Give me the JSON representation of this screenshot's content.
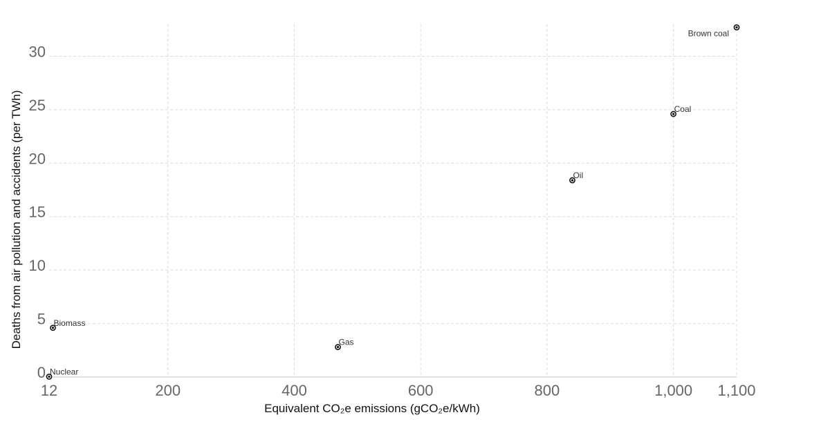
{
  "chart_data": {
    "type": "scatter",
    "xlabel": "Equivalent CO₂e emissions (gCO₂e/kWh)",
    "ylabel": "Deaths from air pollution and accidents (per TWh)",
    "xlim": [
      12,
      1100
    ],
    "ylim": [
      0,
      33
    ],
    "x_ticks": [
      {
        "value": 12,
        "label": "12"
      },
      {
        "value": 200,
        "label": "200"
      },
      {
        "value": 400,
        "label": "400"
      },
      {
        "value": 600,
        "label": "600"
      },
      {
        "value": 800,
        "label": "800"
      },
      {
        "value": 1000,
        "label": "1,000"
      },
      {
        "value": 1100,
        "label": "1,100"
      }
    ],
    "y_ticks": [
      {
        "value": 0,
        "label": "0"
      },
      {
        "value": 5,
        "label": "5"
      },
      {
        "value": 10,
        "label": "10"
      },
      {
        "value": 15,
        "label": "15"
      },
      {
        "value": 20,
        "label": "20"
      },
      {
        "value": 25,
        "label": "25"
      },
      {
        "value": 30,
        "label": "30"
      }
    ],
    "grid": true,
    "points": [
      {
        "label": "Nuclear",
        "x": 12,
        "y": 0.03,
        "label_side": "right"
      },
      {
        "label": "Biomass",
        "x": 18,
        "y": 4.6,
        "label_side": "right"
      },
      {
        "label": "Gas",
        "x": 469,
        "y": 2.8,
        "label_side": "right"
      },
      {
        "label": "Oil",
        "x": 840,
        "y": 18.4,
        "label_side": "right"
      },
      {
        "label": "Coal",
        "x": 1000,
        "y": 24.6,
        "label_side": "right"
      },
      {
        "label": "Brown coal",
        "x": 1100,
        "y": 32.7,
        "label_side": "left"
      }
    ]
  }
}
